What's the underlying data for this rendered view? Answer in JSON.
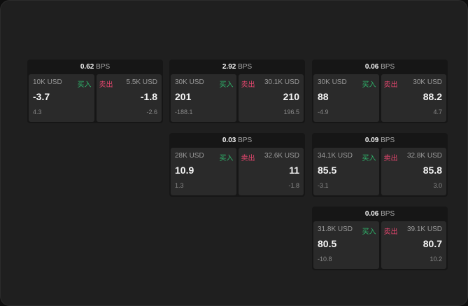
{
  "colors": {
    "buy": "#2fb36a",
    "sell": "#e2466d"
  },
  "unit": "BPS",
  "buy_label": "买入",
  "sell_label": "卖出",
  "widgets": [
    {
      "spread": "0.62",
      "bid_size": "10K USD",
      "bid": "-3.7",
      "bid_change": "4.3",
      "ask_size": "5.5K USD",
      "ask": "-1.8",
      "ask_change": "-2.6"
    },
    {
      "spread": "2.92",
      "bid_size": "30K USD",
      "bid": "201",
      "bid_change": "-188.1",
      "ask_size": "30.1K USD",
      "ask": "210",
      "ask_change": "196.5"
    },
    {
      "spread": "0.06",
      "bid_size": "30K USD",
      "bid": "88",
      "bid_change": "-4.9",
      "ask_size": "30K USD",
      "ask": "88.2",
      "ask_change": "4.7"
    },
    {
      "spread": "0.03",
      "bid_size": "28K USD",
      "bid": "10.9",
      "bid_change": "1.3",
      "ask_size": "32.6K USD",
      "ask": "11",
      "ask_change": "-1.8"
    },
    {
      "spread": "0.09",
      "bid_size": "34.1K USD",
      "bid": "85.5",
      "bid_change": "-3.1",
      "ask_size": "32.8K USD",
      "ask": "85.8",
      "ask_change": "3.0"
    },
    {
      "spread": "0.06",
      "bid_size": "31.8K USD",
      "bid": "80.5",
      "bid_change": "-10.8",
      "ask_size": "39.1K USD",
      "ask": "80.7",
      "ask_change": "10.2"
    }
  ]
}
